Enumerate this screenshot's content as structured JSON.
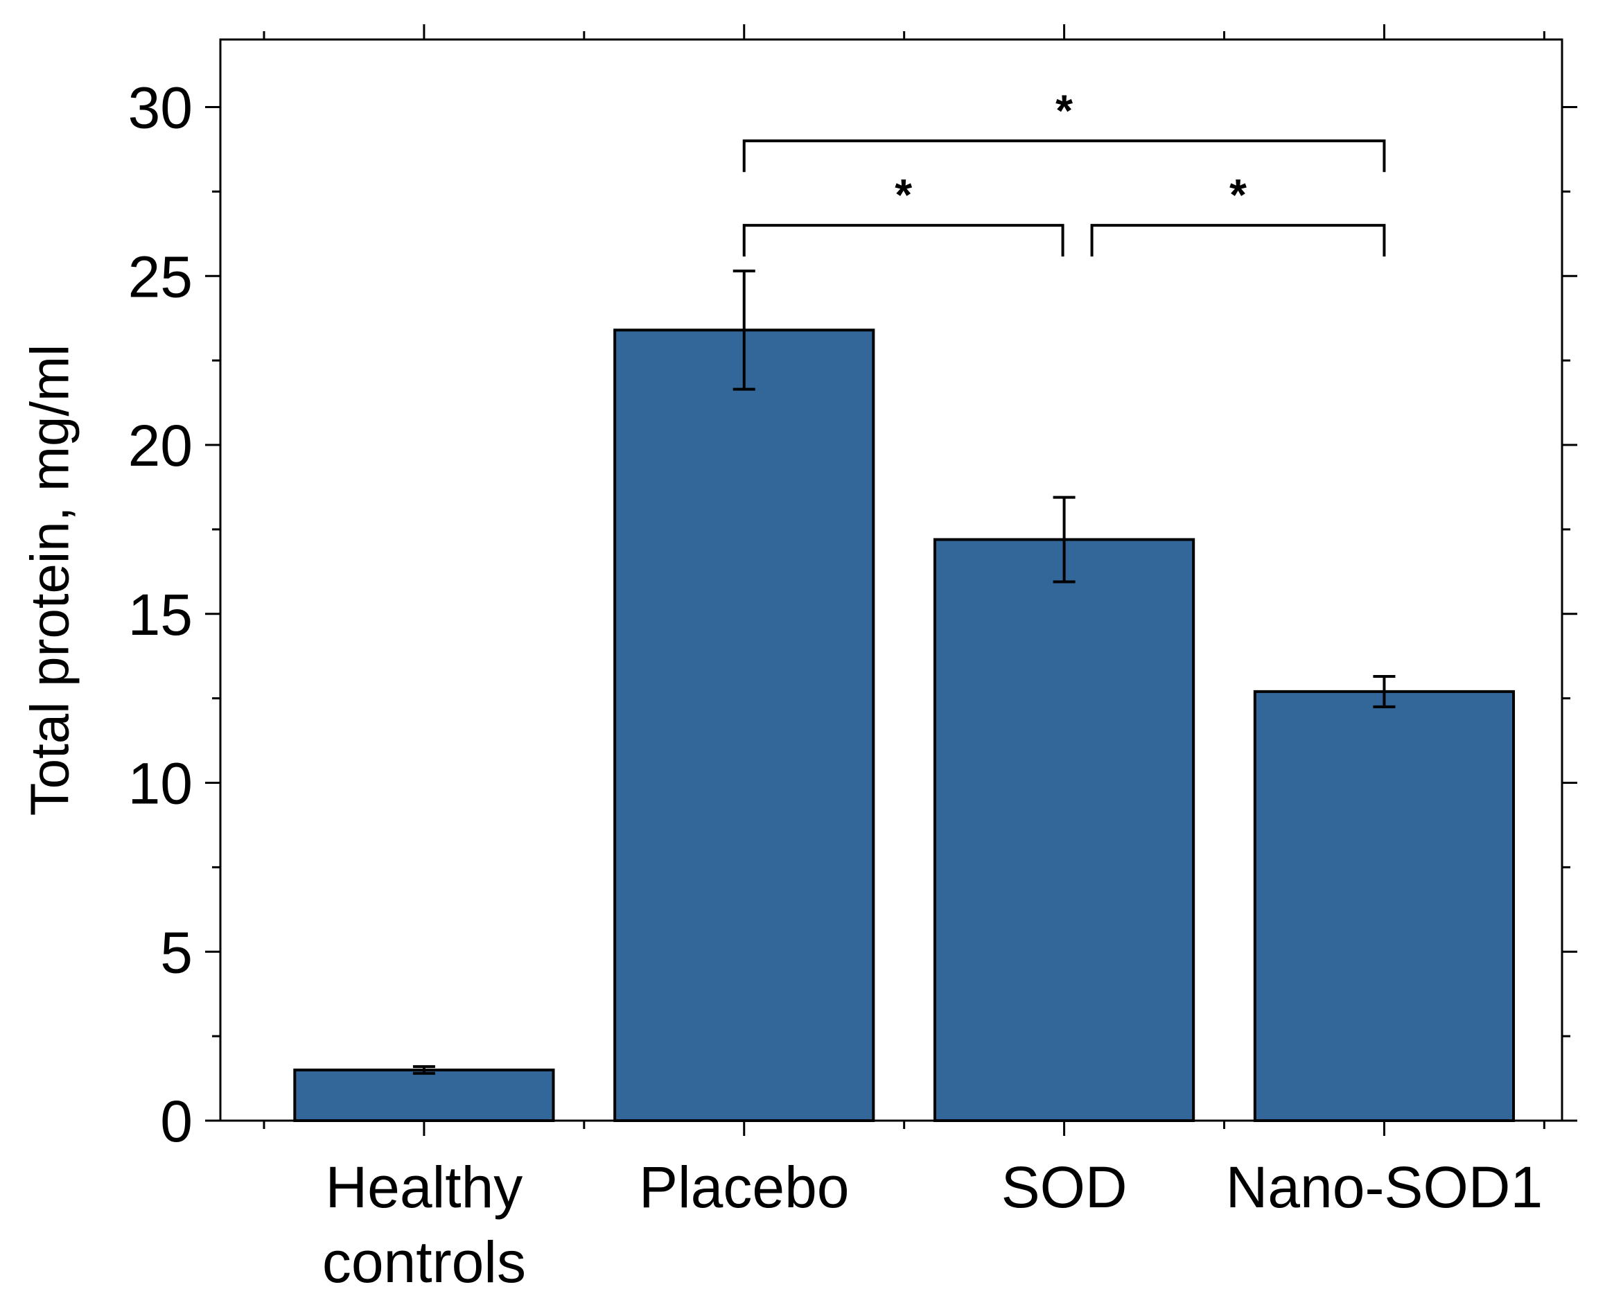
{
  "chart_data": {
    "type": "bar",
    "title": "",
    "xlabel": "",
    "ylabel": "Total protein, mg/ml",
    "ylim": [
      0,
      32
    ],
    "yticks": [
      0,
      5,
      10,
      15,
      20,
      25,
      30
    ],
    "categories": [
      [
        "Healthy",
        "controls"
      ],
      [
        "Placebo"
      ],
      [
        "SOD"
      ],
      [
        "Nano-SOD1"
      ]
    ],
    "values": [
      1.5,
      23.4,
      17.2,
      12.7
    ],
    "errors": [
      0.1,
      1.75,
      1.25,
      0.45
    ],
    "bar_color": "#336699",
    "significance": [
      {
        "from": 1,
        "to": 3,
        "y": 29.0,
        "label": "*"
      },
      {
        "from": 1,
        "to": 2,
        "y": 26.5,
        "label": "*"
      },
      {
        "from": 2,
        "to": 3,
        "y": 26.5,
        "label": "*"
      }
    ],
    "grid": false,
    "legend": "none"
  }
}
